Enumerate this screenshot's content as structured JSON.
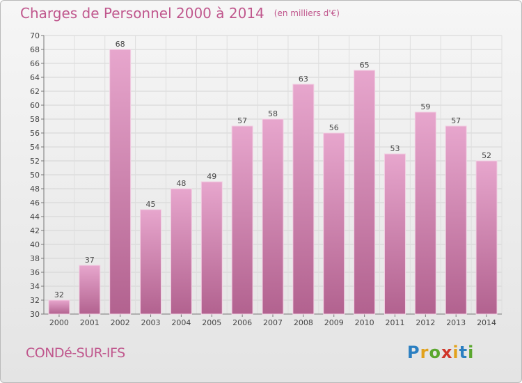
{
  "header": {
    "title": "Charges de Personnel 2000 à 2014",
    "subtitle": "(en milliers d'€)"
  },
  "footer": {
    "commune": "CONDé-SUR-IFS",
    "logo": "Proxiti"
  },
  "colors": {
    "bar_top": "#e7a6cd",
    "bar_bottom": "#b2628f",
    "accent": "#c0578d"
  },
  "chart_data": {
    "type": "bar",
    "title": "Charges de Personnel 2000 à 2014",
    "subtitle": "(en milliers d'€)",
    "categories": [
      "2000",
      "2001",
      "2002",
      "2003",
      "2004",
      "2005",
      "2006",
      "2007",
      "2008",
      "2009",
      "2010",
      "2011",
      "2012",
      "2013",
      "2014"
    ],
    "values": [
      32,
      37,
      68,
      45,
      48,
      49,
      57,
      58,
      63,
      56,
      65,
      53,
      59,
      57,
      52
    ],
    "ylim": [
      30,
      70
    ],
    "ytick_step": 2,
    "grid": true,
    "legend": "none"
  }
}
